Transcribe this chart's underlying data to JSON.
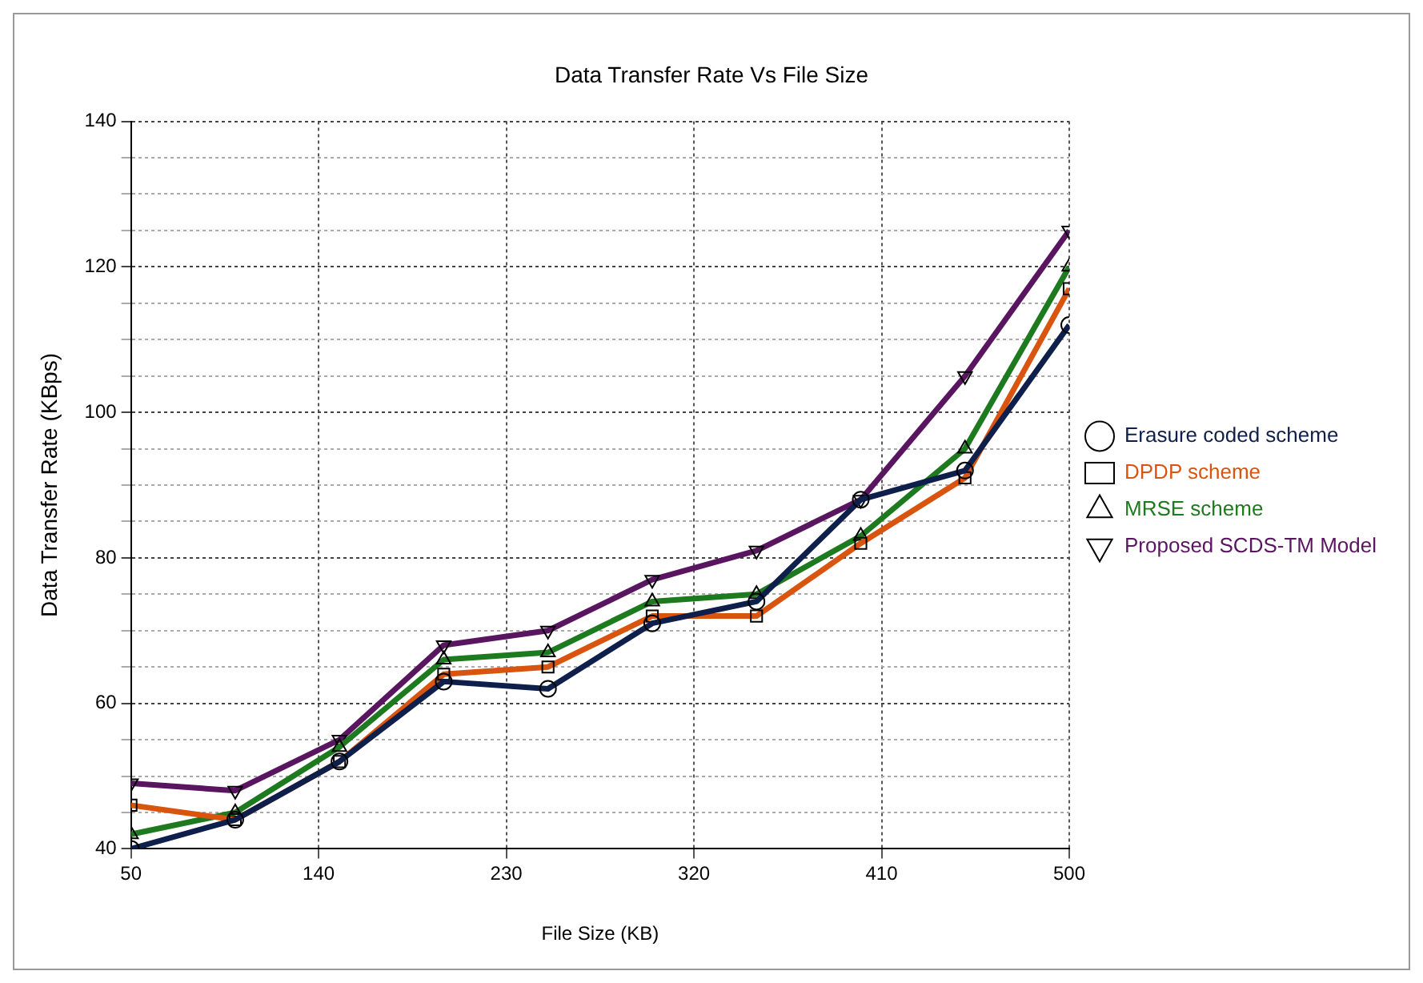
{
  "chart_data": {
    "type": "line",
    "title": "Data Transfer Rate Vs File Size",
    "xlabel": "File Size (KB)",
    "ylabel": "Data Transfer Rate (KBps)",
    "x": [
      50,
      100,
      150,
      200,
      250,
      300,
      350,
      400,
      450,
      500
    ],
    "series": [
      {
        "name": "Erasure coded scheme",
        "color": "#0d1f4a",
        "marker": "circle",
        "values": [
          40,
          44,
          52,
          63,
          62,
          71,
          74,
          88,
          92,
          112
        ]
      },
      {
        "name": "DPDP scheme",
        "color": "#d9540f",
        "marker": "square",
        "values": [
          46,
          44,
          52,
          64,
          65,
          72,
          72,
          82,
          91,
          117
        ]
      },
      {
        "name": "MRSE scheme",
        "color": "#1e7a1e",
        "marker": "triangle",
        "values": [
          42,
          45,
          54,
          66,
          67,
          74,
          75,
          83,
          95,
          120
        ]
      },
      {
        "name": "Proposed SCDS-TM Model",
        "color": "#5a1560",
        "marker": "triangle-down",
        "values": [
          49,
          48,
          55,
          68,
          70,
          77,
          81,
          88,
          105,
          125
        ]
      }
    ],
    "xlim": [
      50,
      500
    ],
    "xticks": [
      50,
      140,
      230,
      320,
      410,
      500
    ],
    "ylim": [
      40,
      140
    ],
    "yticks": [
      40,
      {
        "value": 45,
        "label": null
      },
      {
        "value": 50,
        "label": null
      },
      {
        "value": 55,
        "label": null
      },
      60,
      {
        "value": 65,
        "label": null
      },
      {
        "value": 70,
        "label": null
      },
      {
        "value": 75,
        "label": null
      },
      80,
      {
        "value": 85,
        "label": null
      },
      {
        "value": 90,
        "label": null
      },
      {
        "value": 95,
        "label": null
      },
      100,
      {
        "value": 105,
        "label": null
      },
      {
        "value": 110,
        "label": null
      },
      {
        "value": 115,
        "label": null
      },
      120,
      {
        "value": 125,
        "label": null
      },
      {
        "value": 130,
        "label": null
      },
      {
        "value": 135,
        "label": null
      },
      140
    ],
    "grid": true,
    "legend": "right",
    "line_style": "solid"
  }
}
